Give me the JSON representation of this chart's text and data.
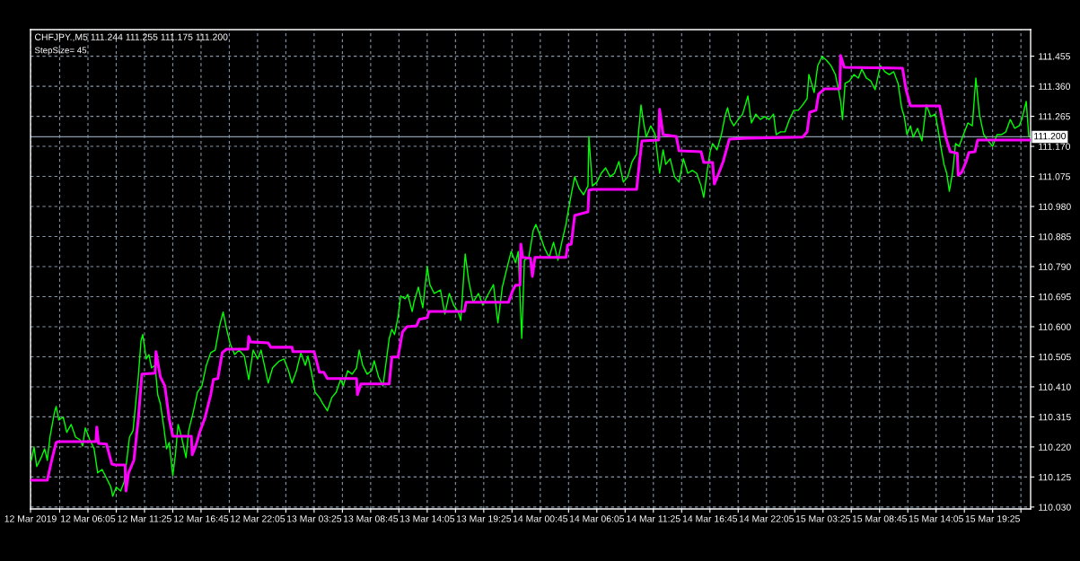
{
  "chart_data": {
    "type": "line",
    "title": "CHFJPY.,M5 111.244 111.255 111.175 111.200",
    "subtitle": "StepSize= 45",
    "xlim": [
      "2019-03-12T00:40",
      "2019-03-15T23:00"
    ],
    "ylim": [
      110.024,
      111.539
    ],
    "xticks": [
      {
        "value": "2019-03-12T00:40",
        "label": "12 Mar 2019"
      },
      {
        "value": "2019-03-12T03:25",
        "label": null
      },
      {
        "value": "2019-03-12T06:05",
        "label": "12 Mar 06:05"
      },
      {
        "value": "2019-03-12T08:45",
        "label": null
      },
      {
        "value": "2019-03-12T11:25",
        "label": "12 Mar 11:25"
      },
      {
        "value": "2019-03-12T14:05",
        "label": null
      },
      {
        "value": "2019-03-12T16:45",
        "label": "12 Mar 16:45"
      },
      {
        "value": "2019-03-12T19:25",
        "label": null
      },
      {
        "value": "2019-03-12T22:05",
        "label": "12 Mar 22:05"
      },
      {
        "value": "2019-03-13T00:45",
        "label": null
      },
      {
        "value": "2019-03-13T03:25",
        "label": "13 Mar 03:25"
      },
      {
        "value": "2019-03-13T06:05",
        "label": null
      },
      {
        "value": "2019-03-13T08:45",
        "label": "13 Mar 08:45"
      },
      {
        "value": "2019-03-13T11:25",
        "label": null
      },
      {
        "value": "2019-03-13T14:05",
        "label": "13 Mar 14:05"
      },
      {
        "value": "2019-03-13T16:45",
        "label": null
      },
      {
        "value": "2019-03-13T19:25",
        "label": "13 Mar 19:25"
      },
      {
        "value": "2019-03-13T22:05",
        "label": null
      },
      {
        "value": "2019-03-14T00:45",
        "label": "14 Mar 00:45"
      },
      {
        "value": "2019-03-14T03:25",
        "label": null
      },
      {
        "value": "2019-03-14T06:05",
        "label": "14 Mar 06:05"
      },
      {
        "value": "2019-03-14T08:45",
        "label": null
      },
      {
        "value": "2019-03-14T11:25",
        "label": "14 Mar 11:25"
      },
      {
        "value": "2019-03-14T14:05",
        "label": null
      },
      {
        "value": "2019-03-14T16:45",
        "label": "14 Mar 16:45"
      },
      {
        "value": "2019-03-14T19:25",
        "label": null
      },
      {
        "value": "2019-03-14T22:05",
        "label": "14 Mar 22:05"
      },
      {
        "value": "2019-03-15T00:45",
        "label": null
      },
      {
        "value": "2019-03-15T03:25",
        "label": "15 Mar 03:25"
      },
      {
        "value": "2019-03-15T06:05",
        "label": null
      },
      {
        "value": "2019-03-15T08:45",
        "label": "15 Mar 08:45"
      },
      {
        "value": "2019-03-15T11:25",
        "label": null
      },
      {
        "value": "2019-03-15T14:05",
        "label": "15 Mar 14:05"
      },
      {
        "value": "2019-03-15T16:45",
        "label": null
      },
      {
        "value": "2019-03-15T19:25",
        "label": "15 Mar 19:25"
      },
      {
        "value": "2019-03-15T22:05",
        "label": null
      }
    ],
    "yticks": [
      {
        "value": 110.03,
        "label": "110.030"
      },
      110.125,
      {
        "value": 110.22,
        "label": "110.220"
      },
      110.315,
      {
        "value": 110.41,
        "label": "110.410"
      },
      110.505,
      {
        "value": 110.6,
        "label": "110.600"
      },
      110.695,
      {
        "value": 110.79,
        "label": "110.790"
      },
      110.885,
      {
        "value": 110.98,
        "label": "110.980"
      },
      111.075,
      {
        "value": 111.17,
        "label": "111.170"
      },
      111.265,
      {
        "value": 111.36,
        "label": "111.360"
      },
      111.455
    ],
    "grid": true,
    "ref_lines": [
      {
        "axis": "y",
        "value": 111.2,
        "label": "111.200",
        "color": "#8c9cad"
      }
    ],
    "series": [
      {
        "color": "#00ff00",
        "x": [
          "2019-03-12T00:45",
          "2019-03-12T01:00",
          "2019-03-12T01:15",
          "2019-03-12T01:40",
          "2019-03-12T02:00",
          "2019-03-12T02:15",
          "2019-03-12T02:30",
          "2019-03-12T02:55",
          "2019-03-12T03:05",
          "2019-03-12T03:20",
          "2019-03-12T03:45",
          "2019-03-12T04:05",
          "2019-03-12T04:30",
          "2019-03-12T04:55",
          "2019-03-12T05:20",
          "2019-03-12T05:35",
          "2019-03-12T05:50",
          "2019-03-12T06:15",
          "2019-03-12T06:40",
          "2019-03-12T07:00",
          "2019-03-12T07:25",
          "2019-03-12T07:50",
          "2019-03-12T08:15",
          "2019-03-12T08:25",
          "2019-03-12T08:45",
          "2019-03-12T09:10",
          "2019-03-12T09:30",
          "2019-03-12T09:45",
          "2019-03-12T10:00",
          "2019-03-12T10:20",
          "2019-03-12T10:35",
          "2019-03-12T10:50",
          "2019-03-12T11:05",
          "2019-03-12T11:15",
          "2019-03-12T11:35",
          "2019-03-12T11:50",
          "2019-03-12T12:05",
          "2019-03-12T12:25",
          "2019-03-12T12:40",
          "2019-03-12T12:55",
          "2019-03-12T13:15",
          "2019-03-12T13:30",
          "2019-03-12T13:45",
          "2019-03-12T14:05",
          "2019-03-12T14:20",
          "2019-03-12T14:35",
          "2019-03-12T14:55",
          "2019-03-12T15:20",
          "2019-03-12T15:35",
          "2019-03-12T16:00",
          "2019-03-12T16:25",
          "2019-03-12T16:50",
          "2019-03-12T17:15",
          "2019-03-12T17:40",
          "2019-03-12T18:05",
          "2019-03-12T18:30",
          "2019-03-12T18:50",
          "2019-03-12T19:10",
          "2019-03-12T19:30",
          "2019-03-12T19:55",
          "2019-03-12T20:20",
          "2019-03-12T20:50",
          "2019-03-12T21:15",
          "2019-03-12T21:40",
          "2019-03-12T22:05",
          "2019-03-12T22:25",
          "2019-03-12T22:50",
          "2019-03-12T23:05",
          "2019-03-12T23:30",
          "2019-03-13T00:05",
          "2019-03-13T00:35",
          "2019-03-13T01:00",
          "2019-03-13T01:20",
          "2019-03-13T01:45",
          "2019-03-13T02:10",
          "2019-03-13T02:35",
          "2019-03-13T02:50",
          "2019-03-13T03:15",
          "2019-03-13T03:30",
          "2019-03-13T03:55",
          "2019-03-13T04:15",
          "2019-03-13T04:40",
          "2019-03-13T05:05",
          "2019-03-13T05:30",
          "2019-03-13T05:55",
          "2019-03-13T06:10",
          "2019-03-13T06:35",
          "2019-03-13T07:00",
          "2019-03-13T07:25",
          "2019-03-13T07:40",
          "2019-03-13T08:00",
          "2019-03-13T08:25",
          "2019-03-13T08:50",
          "2019-03-13T09:05",
          "2019-03-13T09:30",
          "2019-03-13T09:55",
          "2019-03-13T10:10",
          "2019-03-13T10:30",
          "2019-03-13T10:45",
          "2019-03-13T11:00",
          "2019-03-13T11:20",
          "2019-03-13T11:35",
          "2019-03-13T12:00",
          "2019-03-13T12:15",
          "2019-03-13T12:40",
          "2019-03-13T12:50",
          "2019-03-13T13:15",
          "2019-03-13T13:40",
          "2019-03-13T14:05",
          "2019-03-13T14:20",
          "2019-03-13T14:45",
          "2019-03-13T15:20",
          "2019-03-13T15:45",
          "2019-03-13T16:10",
          "2019-03-13T16:35",
          "2019-03-13T17:00",
          "2019-03-13T17:15",
          "2019-03-13T17:40",
          "2019-03-13T18:00",
          "2019-03-13T18:25",
          "2019-03-13T18:55",
          "2019-03-13T19:20",
          "2019-03-13T19:45",
          "2019-03-13T20:20",
          "2019-03-13T20:45",
          "2019-03-13T21:10",
          "2019-03-13T21:35",
          "2019-03-13T22:00",
          "2019-03-13T22:25",
          "2019-03-13T22:40",
          "2019-03-13T23:00",
          "2019-03-13T23:15",
          "2019-03-13T23:40",
          "2019-03-14T00:05",
          "2019-03-14T00:20",
          "2019-03-14T00:45",
          "2019-03-14T01:10",
          "2019-03-14T01:35",
          "2019-03-14T02:00",
          "2019-03-14T02:25",
          "2019-03-14T02:50",
          "2019-03-14T03:10",
          "2019-03-14T03:25",
          "2019-03-14T03:40",
          "2019-03-14T04:00",
          "2019-03-14T04:25",
          "2019-03-14T04:50",
          "2019-03-14T05:15",
          "2019-03-14T05:20",
          "2019-03-14T05:40",
          "2019-03-14T06:05",
          "2019-03-14T06:30",
          "2019-03-14T06:55",
          "2019-03-14T07:20",
          "2019-03-14T07:45",
          "2019-03-14T08:10",
          "2019-03-14T08:35",
          "2019-03-14T09:00",
          "2019-03-14T09:25",
          "2019-03-14T09:50",
          "2019-03-14T10:15",
          "2019-03-14T10:30",
          "2019-03-14T10:45",
          "2019-03-14T11:10",
          "2019-03-14T11:35",
          "2019-03-14T12:00",
          "2019-03-14T12:20",
          "2019-03-14T12:35",
          "2019-03-14T13:00",
          "2019-03-14T13:25",
          "2019-03-14T13:50",
          "2019-03-14T14:15",
          "2019-03-14T14:40",
          "2019-03-14T15:05",
          "2019-03-14T15:30",
          "2019-03-14T15:55",
          "2019-03-14T16:10",
          "2019-03-14T16:30",
          "2019-03-14T16:45",
          "2019-03-14T17:00",
          "2019-03-14T17:25",
          "2019-03-14T17:50",
          "2019-03-14T18:10",
          "2019-03-14T18:25",
          "2019-03-14T18:40",
          "2019-03-14T19:00",
          "2019-03-14T19:25",
          "2019-03-14T19:50",
          "2019-03-14T20:20",
          "2019-03-14T20:40",
          "2019-03-14T21:05",
          "2019-03-14T21:30",
          "2019-03-14T21:55",
          "2019-03-14T22:20",
          "2019-03-14T22:45",
          "2019-03-14T23:00",
          "2019-03-14T23:25",
          "2019-03-14T23:50",
          "2019-03-15T00:15",
          "2019-03-15T00:40",
          "2019-03-15T01:05",
          "2019-03-15T01:30",
          "2019-03-15T01:55",
          "2019-03-15T02:05",
          "2019-03-15T02:20",
          "2019-03-15T02:35",
          "2019-03-15T02:55",
          "2019-03-15T03:20",
          "2019-03-15T03:45",
          "2019-03-15T04:10",
          "2019-03-15T04:35",
          "2019-03-15T04:50",
          "2019-03-15T05:05",
          "2019-03-15T05:15",
          "2019-03-15T05:30",
          "2019-03-15T05:55",
          "2019-03-15T06:20",
          "2019-03-15T06:45",
          "2019-03-15T07:05",
          "2019-03-15T07:30",
          "2019-03-15T07:55",
          "2019-03-15T08:20",
          "2019-03-15T08:50",
          "2019-03-15T09:15",
          "2019-03-15T09:40",
          "2019-03-15T10:05",
          "2019-03-15T10:30",
          "2019-03-15T10:50",
          "2019-03-15T11:05",
          "2019-03-15T11:20",
          "2019-03-15T11:40",
          "2019-03-15T11:55",
          "2019-03-15T12:20",
          "2019-03-15T12:45",
          "2019-03-15T13:10",
          "2019-03-15T13:35",
          "2019-03-15T14:00",
          "2019-03-15T14:15",
          "2019-03-15T14:35",
          "2019-03-15T14:50",
          "2019-03-15T15:05",
          "2019-03-15T15:20",
          "2019-03-15T15:40",
          "2019-03-15T15:55",
          "2019-03-15T16:15",
          "2019-03-15T16:40",
          "2019-03-15T17:05",
          "2019-03-15T17:30",
          "2019-03-15T17:50",
          "2019-03-15T18:10",
          "2019-03-15T18:35",
          "2019-03-15T19:00",
          "2019-03-15T19:25",
          "2019-03-15T19:50",
          "2019-03-15T20:15",
          "2019-03-15T20:40",
          "2019-03-15T21:05",
          "2019-03-15T21:30",
          "2019-03-15T21:55",
          "2019-03-15T22:10",
          "2019-03-15T22:35",
          "2019-03-15T22:50"
        ],
        "values": [
          110.178,
          110.22,
          110.158,
          110.186,
          110.214,
          110.178,
          110.251,
          110.328,
          110.348,
          110.305,
          110.314,
          110.266,
          110.291,
          110.251,
          110.243,
          110.223,
          110.28,
          110.243,
          110.214,
          110.138,
          110.149,
          110.121,
          110.093,
          110.064,
          110.093,
          110.081,
          110.11,
          110.178,
          110.251,
          110.271,
          110.356,
          110.441,
          110.555,
          110.575,
          110.498,
          110.512,
          110.47,
          110.478,
          110.385,
          110.356,
          110.28,
          110.214,
          110.234,
          110.129,
          110.195,
          110.291,
          110.251,
          110.186,
          110.271,
          110.328,
          110.393,
          110.413,
          110.478,
          110.518,
          110.526,
          110.603,
          110.646,
          110.592,
          110.546,
          110.512,
          110.526,
          110.507,
          110.433,
          110.526,
          110.498,
          110.526,
          110.461,
          110.422,
          110.47,
          110.49,
          110.498,
          110.461,
          110.422,
          110.461,
          110.518,
          110.478,
          110.507,
          110.441,
          110.393,
          110.376,
          110.356,
          110.334,
          110.376,
          110.393,
          110.433,
          110.413,
          110.461,
          110.45,
          110.47,
          110.526,
          110.478,
          110.45,
          110.461,
          110.492,
          110.441,
          110.413,
          110.478,
          110.563,
          110.592,
          110.575,
          110.631,
          110.697,
          110.688,
          110.702,
          110.648,
          110.677,
          110.725,
          110.66,
          110.79,
          110.733,
          110.705,
          110.716,
          110.64,
          110.705,
          110.668,
          110.648,
          110.62,
          110.83,
          110.745,
          110.677,
          110.705,
          110.668,
          110.697,
          110.733,
          110.612,
          110.725,
          110.782,
          110.838,
          110.802,
          110.838,
          110.563,
          110.81,
          110.819,
          110.904,
          110.923,
          110.887,
          110.847,
          110.819,
          110.867,
          110.81,
          110.875,
          110.923,
          110.972,
          111.017,
          111.074,
          111.037,
          111.017,
          111.045,
          111.201,
          111.045,
          111.057,
          111.085,
          111.102,
          111.074,
          111.085,
          111.122,
          111.057,
          111.074,
          111.122,
          111.145,
          111.301,
          111.244,
          111.199,
          111.235,
          111.207,
          111.085,
          111.159,
          111.113,
          111.131,
          111.074,
          111.057,
          111.131,
          111.085,
          111.094,
          111.085,
          111.045,
          111.009,
          111.094,
          111.15,
          111.179,
          111.159,
          111.207,
          111.264,
          111.292,
          111.255,
          111.235,
          111.255,
          111.272,
          111.329,
          111.244,
          111.272,
          111.255,
          111.264,
          111.255,
          111.272,
          111.207,
          111.216,
          111.216,
          111.255,
          111.284,
          111.284,
          111.301,
          111.321,
          111.397,
          111.369,
          111.34,
          111.425,
          111.454,
          111.442,
          111.425,
          111.397,
          111.357,
          111.312,
          111.255,
          111.369,
          111.377,
          111.397,
          111.386,
          111.414,
          111.386,
          111.377,
          111.349,
          111.425,
          111.406,
          111.397,
          111.406,
          111.369,
          111.292,
          111.264,
          111.207,
          111.235,
          111.199,
          111.227,
          111.187,
          111.301,
          111.264,
          111.272,
          111.227,
          111.159,
          111.113,
          111.085,
          111.028,
          111.094,
          111.179,
          111.17,
          111.207,
          111.244,
          111.235,
          111.386,
          111.272,
          111.207,
          111.187,
          111.17,
          111.207,
          111.207,
          111.216,
          111.255,
          111.227,
          111.235,
          111.255,
          111.312,
          111.201
        ]
      },
      {
        "color": "#ff00ff",
        "x": [
          "2019-03-12T00:45",
          "2019-03-12T02:15",
          "2019-03-12T02:40",
          "2019-03-12T03:05",
          "2019-03-12T03:20",
          "2019-03-12T06:50",
          "2019-03-12T06:55",
          "2019-03-12T07:05",
          "2019-03-12T07:50",
          "2019-03-12T08:20",
          "2019-03-12T08:40",
          "2019-03-12T09:35",
          "2019-03-12T09:40",
          "2019-03-12T09:55",
          "2019-03-12T10:25",
          "2019-03-12T10:50",
          "2019-03-12T11:10",
          "2019-03-12T12:25",
          "2019-03-12T12:30",
          "2019-03-12T12:55",
          "2019-03-12T13:20",
          "2019-03-12T13:45",
          "2019-03-12T14:05",
          "2019-03-12T15:50",
          "2019-03-12T15:55",
          "2019-03-12T16:15",
          "2019-03-12T16:40",
          "2019-03-12T17:05",
          "2019-03-12T17:40",
          "2019-03-12T17:55",
          "2019-03-12T18:20",
          "2019-03-12T18:45",
          "2019-03-12T19:10",
          "2019-03-12T21:10",
          "2019-03-12T21:15",
          "2019-03-12T21:25",
          "2019-03-12T23:05",
          "2019-03-12T23:20",
          "2019-03-13T01:20",
          "2019-03-13T01:25",
          "2019-03-13T03:25",
          "2019-03-13T03:55",
          "2019-03-13T04:20",
          "2019-03-13T04:40",
          "2019-03-13T07:25",
          "2019-03-13T07:30",
          "2019-03-13T07:50",
          "2019-03-13T10:30",
          "2019-03-13T10:45",
          "2019-03-13T11:20",
          "2019-03-13T11:45",
          "2019-03-13T12:10",
          "2019-03-13T13:05",
          "2019-03-13T13:20",
          "2019-03-13T14:05",
          "2019-03-13T14:15",
          "2019-03-13T17:35",
          "2019-03-13T17:45",
          "2019-03-13T21:45",
          "2019-03-13T22:10",
          "2019-03-13T22:25",
          "2019-03-13T22:50",
          "2019-03-13T22:55",
          "2019-03-13T23:05",
          "2019-03-13T23:50",
          "2019-03-14T00:00",
          "2019-03-14T00:15",
          "2019-03-14T03:10",
          "2019-03-14T03:20",
          "2019-03-14T03:40",
          "2019-03-14T04:00",
          "2019-03-14T05:15",
          "2019-03-14T05:20",
          "2019-03-14T05:40",
          "2019-03-14T09:50",
          "2019-03-14T10:05",
          "2019-03-14T10:20",
          "2019-03-14T11:55",
          "2019-03-14T12:00",
          "2019-03-14T12:20",
          "2019-03-14T13:35",
          "2019-03-14T13:50",
          "2019-03-14T15:55",
          "2019-03-14T16:10",
          "2019-03-14T17:00",
          "2019-03-14T17:10",
          "2019-03-14T17:35",
          "2019-03-14T18:00",
          "2019-03-14T18:35",
          "2019-03-14T20:20",
          "2019-03-15T01:30",
          "2019-03-15T01:55",
          "2019-03-15T02:10",
          "2019-03-15T02:45",
          "2019-03-15T03:00",
          "2019-03-15T03:35",
          "2019-03-15T05:00",
          "2019-03-15T05:05",
          "2019-03-15T05:25",
          "2019-03-15T10:55",
          "2019-03-15T11:15",
          "2019-03-15T11:40",
          "2019-03-15T14:25",
          "2019-03-15T14:40",
          "2019-03-15T15:00",
          "2019-03-15T15:25",
          "2019-03-15T16:05",
          "2019-03-15T16:10",
          "2019-03-15T16:30",
          "2019-03-15T16:55",
          "2019-03-15T17:10",
          "2019-03-15T17:45",
          "2019-03-15T18:00",
          "2019-03-15T20:05",
          "2019-03-15T22:55"
        ],
        "values": [
          110.115,
          110.115,
          110.178,
          110.234,
          110.237,
          110.237,
          110.283,
          110.231,
          110.229,
          110.166,
          110.163,
          110.163,
          110.081,
          110.138,
          110.178,
          110.308,
          110.45,
          110.453,
          110.521,
          110.441,
          110.413,
          110.308,
          110.254,
          110.254,
          110.195,
          110.223,
          110.271,
          110.308,
          110.385,
          110.433,
          110.436,
          110.518,
          110.529,
          110.529,
          110.569,
          110.552,
          110.549,
          110.535,
          110.535,
          110.521,
          110.521,
          110.456,
          110.456,
          110.436,
          110.436,
          110.385,
          110.419,
          110.419,
          110.504,
          110.504,
          110.583,
          110.6,
          110.603,
          110.623,
          110.628,
          110.648,
          110.648,
          110.677,
          110.677,
          110.716,
          110.731,
          110.731,
          110.861,
          110.819,
          110.816,
          110.759,
          110.819,
          110.819,
          110.858,
          110.861,
          110.952,
          110.963,
          111.031,
          111.034,
          111.034,
          111.113,
          111.187,
          111.19,
          111.287,
          111.207,
          111.201,
          111.156,
          111.153,
          111.119,
          111.119,
          111.051,
          111.085,
          111.122,
          111.193,
          111.196,
          111.199,
          111.216,
          111.278,
          111.284,
          111.335,
          111.352,
          111.352,
          111.457,
          111.42,
          111.417,
          111.349,
          111.298,
          111.298,
          111.255,
          111.199,
          111.153,
          111.148,
          111.079,
          111.088,
          111.122,
          111.15,
          111.153,
          111.19,
          111.19,
          111.19
        ]
      }
    ]
  }
}
